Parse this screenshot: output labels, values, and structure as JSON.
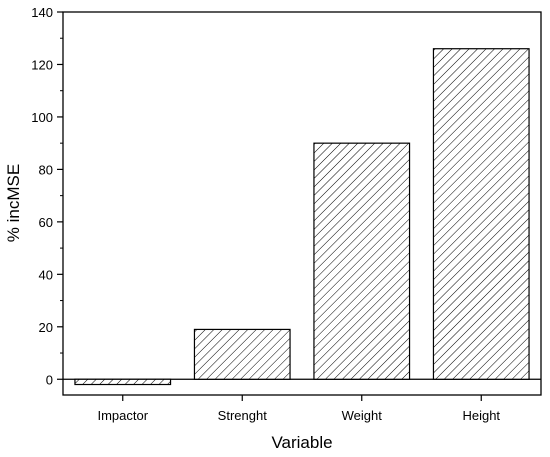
{
  "chart_data": {
    "type": "bar",
    "title": "",
    "xlabel": "Variable",
    "ylabel": "% incMSE",
    "categories": [
      "Impactor",
      "Strenght",
      "Weight",
      "Height"
    ],
    "values": [
      -2,
      19,
      90,
      126
    ],
    "ylim": [
      -6,
      140
    ],
    "yticks": [
      0,
      20,
      40,
      60,
      80,
      100,
      120,
      140
    ],
    "ytick_labels": [
      "0",
      "20",
      "40",
      "60",
      "80",
      "100",
      "120",
      "140"
    ],
    "grid": false,
    "legend": "none",
    "bar_pattern": "diagonal-hatch",
    "bar_fill": "#ffffff",
    "bar_stroke": "#000000"
  }
}
